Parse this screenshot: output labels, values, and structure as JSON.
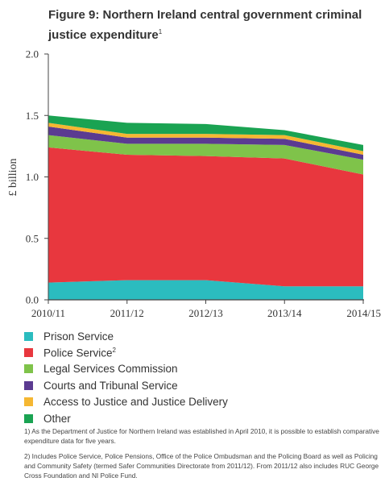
{
  "title": {
    "text": "Figure 9: Northern Ireland central government criminal justice expenditure",
    "superscript": "1"
  },
  "colors": {
    "Prison Service": "#2bbcbf",
    "Police Service": "#e8373e",
    "Legal Services Commission": "#7fc34a",
    "Courts and Tribunal Service": "#5b3b91",
    "Access to Justice and Justice Delivery": "#f5b732",
    "Other": "#1aa352"
  },
  "legend": [
    {
      "label": "Prison Service",
      "sup": ""
    },
    {
      "label": "Police Service",
      "sup": "2"
    },
    {
      "label": "Legal Services Commission",
      "sup": ""
    },
    {
      "label": "Courts and Tribunal Service",
      "sup": ""
    },
    {
      "label": "Access to Justice and Justice Delivery",
      "sup": ""
    },
    {
      "label": "Other",
      "sup": ""
    }
  ],
  "footnotes": [
    "1) As the Department of Justice for Northern Ireland was established in April 2010, it is possible to establish comparative expenditure data for five years.",
    "2) Includes Police Service, Police Pensions, Office of the Police Ombudsman and the Policing Board as well as Policing and Community Safety (termed Safer Communities Directorate from 2011/12). From 2011/12 also includes RUC George Cross Foundation and NI Police Fund."
  ],
  "chart_data": {
    "type": "area",
    "stacked": true,
    "ylabel": "£ billion",
    "ylim": [
      0,
      2.0
    ],
    "yticks": [
      "0.0",
      "0.5",
      "1.0",
      "1.5",
      "2.0"
    ],
    "categories": [
      "2010/11",
      "2011/12",
      "2012/13",
      "2013/14",
      "2014/15"
    ],
    "series": [
      {
        "name": "Prison Service",
        "values": [
          0.14,
          0.16,
          0.16,
          0.11,
          0.11
        ]
      },
      {
        "name": "Police Service",
        "values": [
          1.1,
          1.02,
          1.01,
          1.04,
          0.91
        ]
      },
      {
        "name": "Legal Services Commission",
        "values": [
          0.1,
          0.09,
          0.1,
          0.11,
          0.12
        ]
      },
      {
        "name": "Courts and Tribunal Service",
        "values": [
          0.07,
          0.05,
          0.05,
          0.05,
          0.04
        ]
      },
      {
        "name": "Access to Justice and Justice Delivery",
        "values": [
          0.03,
          0.03,
          0.03,
          0.03,
          0.03
        ]
      },
      {
        "name": "Other",
        "values": [
          0.06,
          0.09,
          0.08,
          0.04,
          0.05
        ]
      }
    ],
    "grid": false,
    "legend_position": "bottom"
  }
}
